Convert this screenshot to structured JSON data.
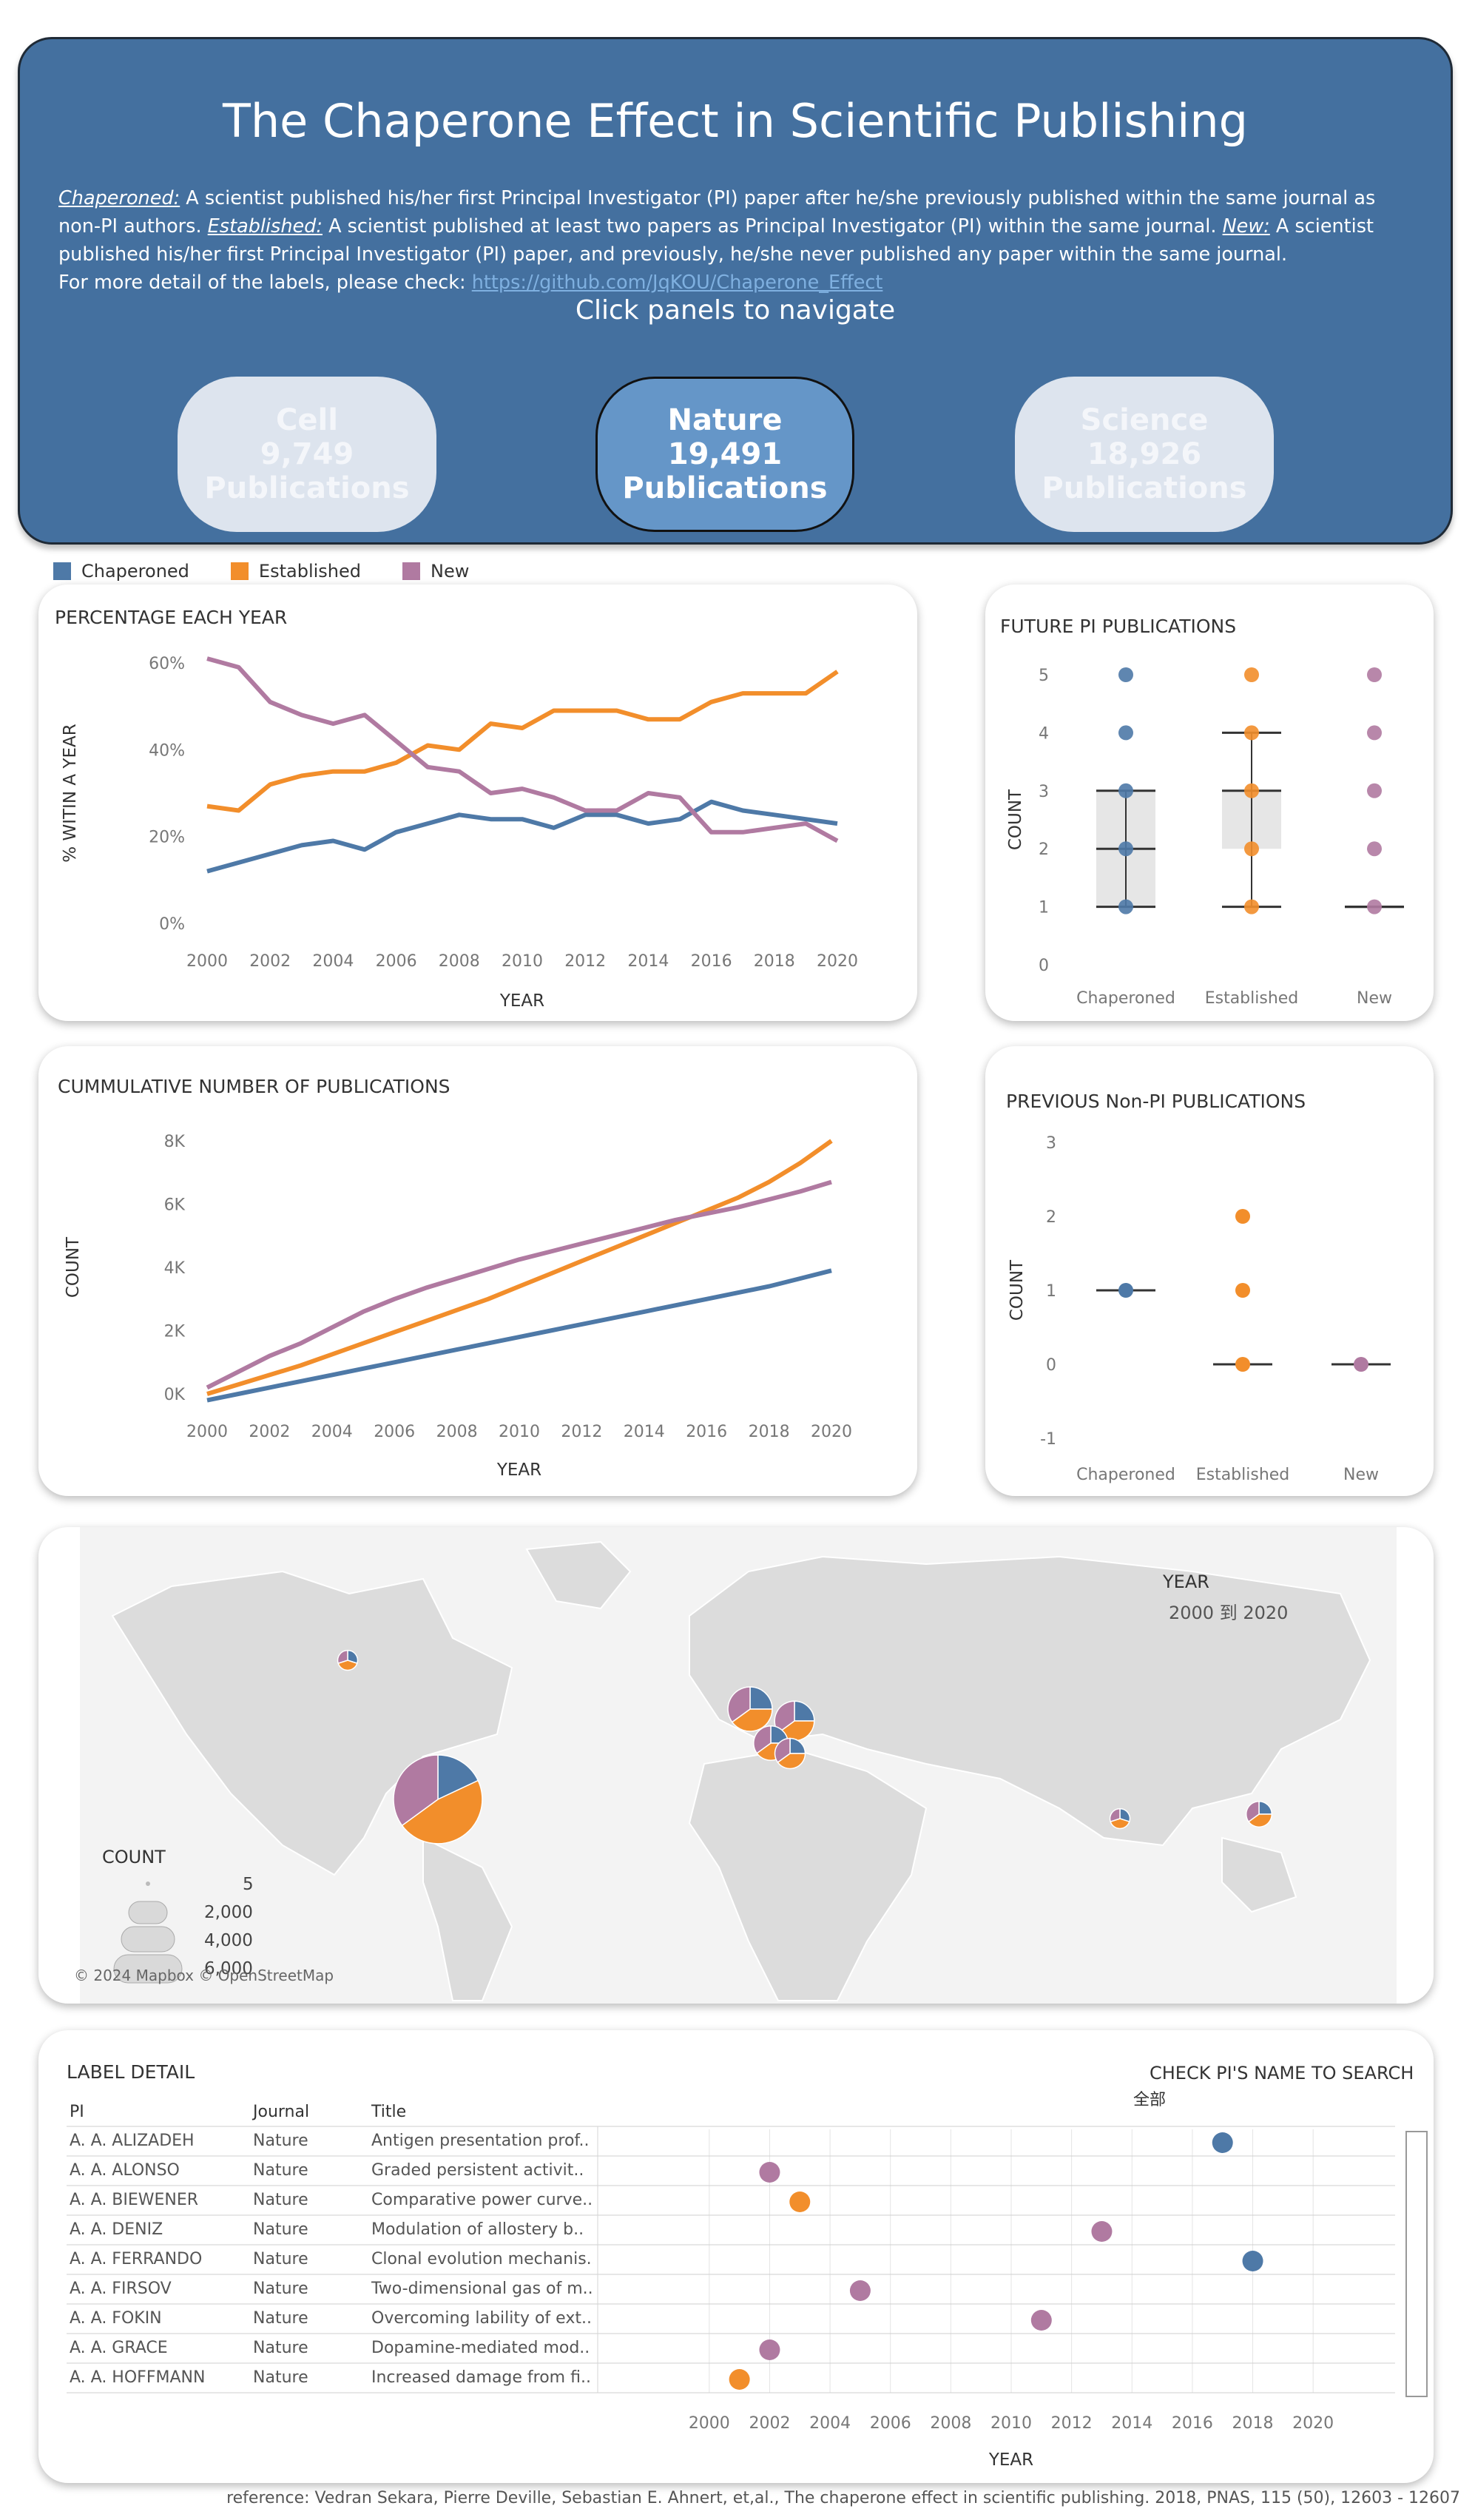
{
  "header": {
    "title": "The Chaperone Effect in Scientific Publishing",
    "definitions": [
      {
        "term": "Chaperoned:",
        "text": " A scientist published his/her first Principal Investigator (PI) paper after he/she previously published within the same journal as non-PI authors.  "
      },
      {
        "term": "Established:",
        "text": " A scientist published at least two papers as Principal Investigator (PI) within the same journal. "
      },
      {
        "term": "New:",
        "text": " A scientist published his/her first Principal Investigator (PI) paper, and previously, he/she never published any paper within the same journal."
      }
    ],
    "more_detail": "For more detail of the labels, please check: ",
    "link": "https://github.com/JqKOU/Chaperone_Effect",
    "nav_hint": "Click panels to navigate",
    "nav": [
      {
        "name": "Cell",
        "count": "9,749",
        "unit": "Publications",
        "active": false
      },
      {
        "name": "Nature",
        "count": "19,491",
        "unit": "Publications",
        "active": true
      },
      {
        "name": "Science",
        "count": "18,926",
        "unit": "Publications",
        "active": false
      }
    ]
  },
  "legend": [
    {
      "label": "Chaperoned",
      "color": "#4e79a7"
    },
    {
      "label": "Established",
      "color": "#f28e2b"
    },
    {
      "label": "New",
      "color": "#b07aa1"
    }
  ],
  "chart_data": [
    {
      "type": "line",
      "title": "PERCENTAGE EACH YEAR",
      "xlabel": "YEAR",
      "ylabel": "% WITIN A YEAR",
      "x": [
        2000,
        2001,
        2002,
        2003,
        2004,
        2005,
        2006,
        2007,
        2008,
        2009,
        2010,
        2011,
        2012,
        2013,
        2014,
        2015,
        2016,
        2017,
        2018,
        2019,
        2020
      ],
      "xticks": [
        "2000",
        "2002",
        "2004",
        "2006",
        "2008",
        "2010",
        "2012",
        "2014",
        "2016",
        "2018",
        "2020"
      ],
      "yticks": [
        "0%",
        "20%",
        "40%",
        "60%"
      ],
      "ylim": [
        0,
        60
      ],
      "series": [
        {
          "name": "Chaperoned",
          "color": "#4e79a7",
          "values": [
            12,
            14,
            16,
            18,
            19,
            17,
            21,
            23,
            25,
            24,
            24,
            22,
            25,
            25,
            23,
            24,
            28,
            26,
            25,
            24,
            23
          ]
        },
        {
          "name": "Established",
          "color": "#f28e2b",
          "values": [
            27,
            26,
            32,
            34,
            35,
            35,
            37,
            41,
            40,
            46,
            45,
            49,
            49,
            49,
            47,
            47,
            51,
            53,
            53,
            53,
            58
          ]
        },
        {
          "name": "New",
          "color": "#b07aa1",
          "values": [
            61,
            59,
            51,
            48,
            46,
            48,
            42,
            36,
            35,
            30,
            31,
            29,
            26,
            26,
            30,
            29,
            21,
            21,
            22,
            23,
            19
          ]
        }
      ]
    },
    {
      "type": "boxplot",
      "title": "FUTURE PI PUBLICATIONS",
      "ylabel": "COUNT",
      "categories": [
        "Chaperoned",
        "Established",
        "New"
      ],
      "yticks": [
        "0",
        "1",
        "2",
        "3",
        "4",
        "5"
      ],
      "ylim": [
        0,
        5
      ],
      "boxes": [
        {
          "name": "Chaperoned",
          "color": "#4e79a7",
          "min": 1,
          "q1": 1,
          "median": 2,
          "q3": 3,
          "max": 3,
          "points": [
            1,
            2,
            3,
            4,
            5
          ]
        },
        {
          "name": "Established",
          "color": "#f28e2b",
          "min": 1,
          "q1": 2,
          "median": 3,
          "q3": 3,
          "max": 4,
          "points": [
            1,
            2,
            3,
            4,
            5
          ]
        },
        {
          "name": "New",
          "color": "#b07aa1",
          "min": 1,
          "q1": 1,
          "median": 1,
          "q3": 1,
          "max": 1,
          "points": [
            1,
            2,
            3,
            4,
            5
          ]
        }
      ]
    },
    {
      "type": "line",
      "title": "CUMMULATIVE NUMBER OF PUBLICATIONS",
      "xlabel": "YEAR",
      "ylabel": "COUNT",
      "x": [
        2000,
        2001,
        2002,
        2003,
        2004,
        2005,
        2006,
        2007,
        2008,
        2009,
        2010,
        2011,
        2012,
        2013,
        2014,
        2015,
        2016,
        2017,
        2018,
        2019,
        2020
      ],
      "xticks": [
        "2000",
        "2002",
        "2004",
        "2006",
        "2008",
        "2010",
        "2012",
        "2014",
        "2016",
        "2018",
        "2020"
      ],
      "yticks": [
        "0K",
        "2K",
        "4K",
        "6K",
        "8K"
      ],
      "ylim": [
        0,
        8000
      ],
      "series": [
        {
          "name": "Chaperoned",
          "color": "#4e79a7",
          "values": [
            -200,
            0,
            200,
            400,
            600,
            800,
            1000,
            1200,
            1400,
            1600,
            1800,
            2000,
            2200,
            2400,
            2600,
            2800,
            3000,
            3200,
            3400,
            3650,
            3900
          ]
        },
        {
          "name": "Established",
          "color": "#f28e2b",
          "values": [
            0,
            300,
            600,
            900,
            1250,
            1600,
            1950,
            2300,
            2650,
            3000,
            3400,
            3800,
            4200,
            4600,
            5000,
            5400,
            5800,
            6200,
            6700,
            7300,
            8000
          ]
        },
        {
          "name": "New",
          "color": "#b07aa1",
          "values": [
            200,
            700,
            1200,
            1600,
            2100,
            2600,
            3000,
            3350,
            3650,
            3950,
            4250,
            4500,
            4750,
            5000,
            5250,
            5500,
            5700,
            5900,
            6150,
            6400,
            6700
          ]
        }
      ]
    },
    {
      "type": "scatter",
      "title": "PREVIOUS Non-PI PUBLICATIONS",
      "ylabel": "COUNT",
      "categories": [
        "Chaperoned",
        "Established",
        "New"
      ],
      "yticks": [
        "-1",
        "0",
        "1",
        "2",
        "3"
      ],
      "ylim": [
        -1,
        3
      ],
      "groups": [
        {
          "name": "Chaperoned",
          "color": "#4e79a7",
          "median": 1,
          "points": [
            1
          ]
        },
        {
          "name": "Established",
          "color": "#f28e2b",
          "median": 0,
          "points": [
            0,
            1,
            2
          ]
        },
        {
          "name": "New",
          "color": "#b07aa1",
          "median": 0,
          "points": [
            0
          ]
        }
      ]
    },
    {
      "type": "table",
      "title": "LABEL DETAIL",
      "columns": [
        "PI",
        "Journal",
        "Title"
      ],
      "xlabel": "YEAR",
      "xticks": [
        "2000",
        "2002",
        "2004",
        "2006",
        "2008",
        "2010",
        "2012",
        "2014",
        "2016",
        "2018",
        "2020"
      ],
      "xlim": [
        1999,
        2021
      ],
      "rows": [
        {
          "pi": "A. A. ALIZADEH",
          "journal": "Nature",
          "title": "Antigen presentation prof..",
          "year": 2017,
          "label": "Chaperoned"
        },
        {
          "pi": "A. A. ALONSO",
          "journal": "Nature",
          "title": "Graded persistent activit..",
          "year": 2002,
          "label": "New"
        },
        {
          "pi": "A. A. BIEWENER",
          "journal": "Nature",
          "title": "Comparative power curve..",
          "year": 2003,
          "label": "Established"
        },
        {
          "pi": "A. A. DENIZ",
          "journal": "Nature",
          "title": "Modulation of allostery b..",
          "year": 2013,
          "label": "New"
        },
        {
          "pi": "A. A. FERRANDO",
          "journal": "Nature",
          "title": "Clonal evolution mechanis..",
          "year": 2018,
          "label": "Chaperoned"
        },
        {
          "pi": "A. A. FIRSOV",
          "journal": "Nature",
          "title": "Two-dimensional gas of m..",
          "year": 2005,
          "label": "New"
        },
        {
          "pi": "A. A. FOKIN",
          "journal": "Nature",
          "title": "Overcoming lability of ext..",
          "year": 2011,
          "label": "New"
        },
        {
          "pi": "A. A. GRACE",
          "journal": "Nature",
          "title": "Dopamine-mediated mod..",
          "year": 2002,
          "label": "New"
        },
        {
          "pi": "A. A. HOFFMANN",
          "journal": "Nature",
          "title": "Increased damage from fi..",
          "year": 2001,
          "label": "Established"
        }
      ]
    }
  ],
  "map": {
    "year_label": "YEAR",
    "year_range": "2000 到 2020",
    "count_legend_title": "COUNT",
    "count_legend": [
      "5",
      "2,000",
      "4,000",
      "6,000"
    ],
    "attribution": "© 2024 Mapbox © OpenStreetMap",
    "pies": [
      {
        "region": "United States",
        "size": 6000,
        "shares": [
          0.18,
          0.47,
          0.35
        ]
      },
      {
        "region": "Canada",
        "size": 300,
        "shares": [
          0.3,
          0.4,
          0.3
        ]
      },
      {
        "region": "United Kingdom",
        "size": 1500,
        "shares": [
          0.25,
          0.4,
          0.35
        ]
      },
      {
        "region": "Germany",
        "size": 1200,
        "shares": [
          0.25,
          0.4,
          0.35
        ]
      },
      {
        "region": "France",
        "size": 900,
        "shares": [
          0.25,
          0.4,
          0.35
        ]
      },
      {
        "region": "Switzerland",
        "size": 700,
        "shares": [
          0.25,
          0.4,
          0.35
        ]
      },
      {
        "region": "Japan",
        "size": 500,
        "shares": [
          0.25,
          0.4,
          0.35
        ]
      },
      {
        "region": "China",
        "size": 300,
        "shares": [
          0.3,
          0.4,
          0.3
        ]
      }
    ]
  },
  "label_detail": {
    "search_label": "CHECK PI'S NAME TO SEARCH",
    "search_value": "全部"
  },
  "reference": "reference: Vedran Sekara, Pierre Deville, Sebastian E. Ahnert, et,al., The chaperone effect in scientific publishing. 2018, PNAS, 115 (50), 12603 - 12607"
}
